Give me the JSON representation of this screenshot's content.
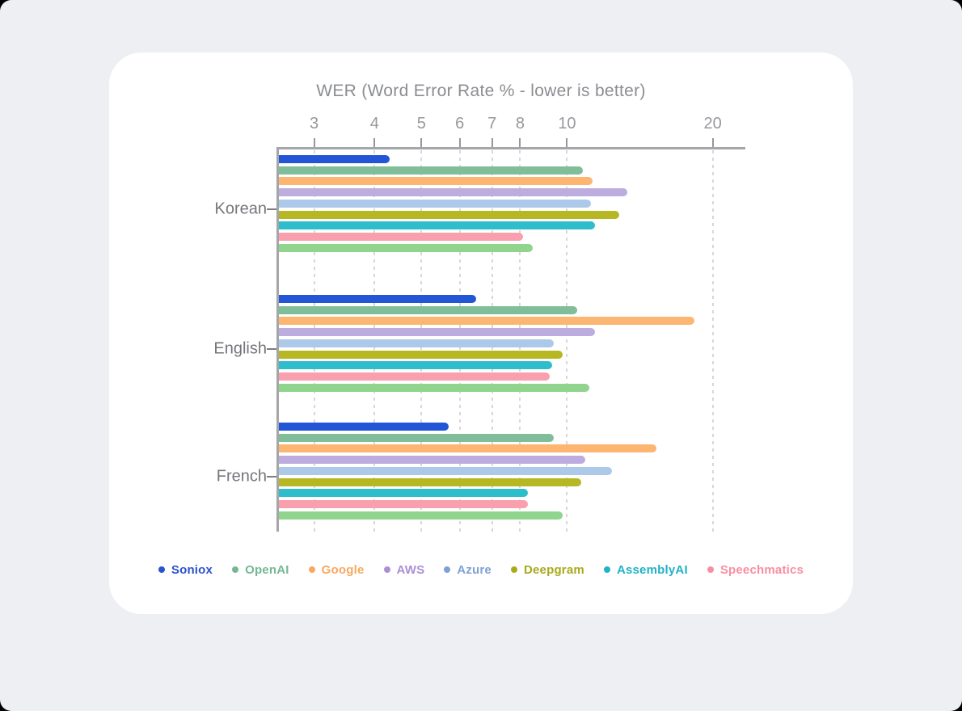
{
  "title": "WER (Word Error Rate % - lower is better)",
  "colors": {
    "page_bg": "#edeff3",
    "card_bg": "#ffffff",
    "axis": "#a5a6a9",
    "grid": "#d6d7d9",
    "tick_label": "#97989c",
    "title": "#8b8d91",
    "category_label": "#74767b"
  },
  "chart_data": {
    "type": "bar",
    "orientation": "horizontal",
    "title": "WER (Word Error Rate % - lower is better)",
    "xlabel": "",
    "ylabel": "",
    "x_scale": "log",
    "x_ticks": [
      3,
      4,
      5,
      6,
      7,
      8,
      10,
      20
    ],
    "x_range": [
      2.5,
      23.3
    ],
    "grid": "dashed-vertical",
    "legend_position": "bottom",
    "categories": [
      "Korean",
      "English",
      "French"
    ],
    "series": [
      {
        "name": "Soniox",
        "color": "#2256d7",
        "legend_color": "#2b52cf",
        "values": [
          4.3,
          6.5,
          5.7
        ]
      },
      {
        "name": "OpenAI",
        "color": "#80bd99",
        "legend_color": "#74b893",
        "values": [
          10.8,
          10.5,
          9.4
        ]
      },
      {
        "name": "Google",
        "color": "#fcb671",
        "legend_color": "#f8a85f",
        "values": [
          11.3,
          18.3,
          15.3
        ]
      },
      {
        "name": "AWS",
        "color": "#bdacde",
        "legend_color": "#aa90d3",
        "values": [
          13.3,
          11.4,
          10.9
        ]
      },
      {
        "name": "Azure",
        "color": "#adc9e9",
        "legend_color": "#7fa0d7",
        "values": [
          11.2,
          9.4,
          12.4
        ]
      },
      {
        "name": "Deepgram",
        "color": "#b7b724",
        "legend_color": "#a9a91c",
        "values": [
          12.8,
          9.8,
          10.7
        ]
      },
      {
        "name": "AssemblyAI",
        "color": "#2ebdcb",
        "legend_color": "#21b2c7",
        "values": [
          11.4,
          9.3,
          8.3
        ]
      },
      {
        "name": "Speechmatics",
        "color": "#fa9fae",
        "legend_color": "#f98da1",
        "values": [
          8.1,
          9.2,
          8.3
        ]
      },
      {
        "name": "",
        "color": "#90d48d",
        "legend_color": "#90d48d",
        "values": [
          8.5,
          11.1,
          9.8
        ]
      }
    ]
  }
}
